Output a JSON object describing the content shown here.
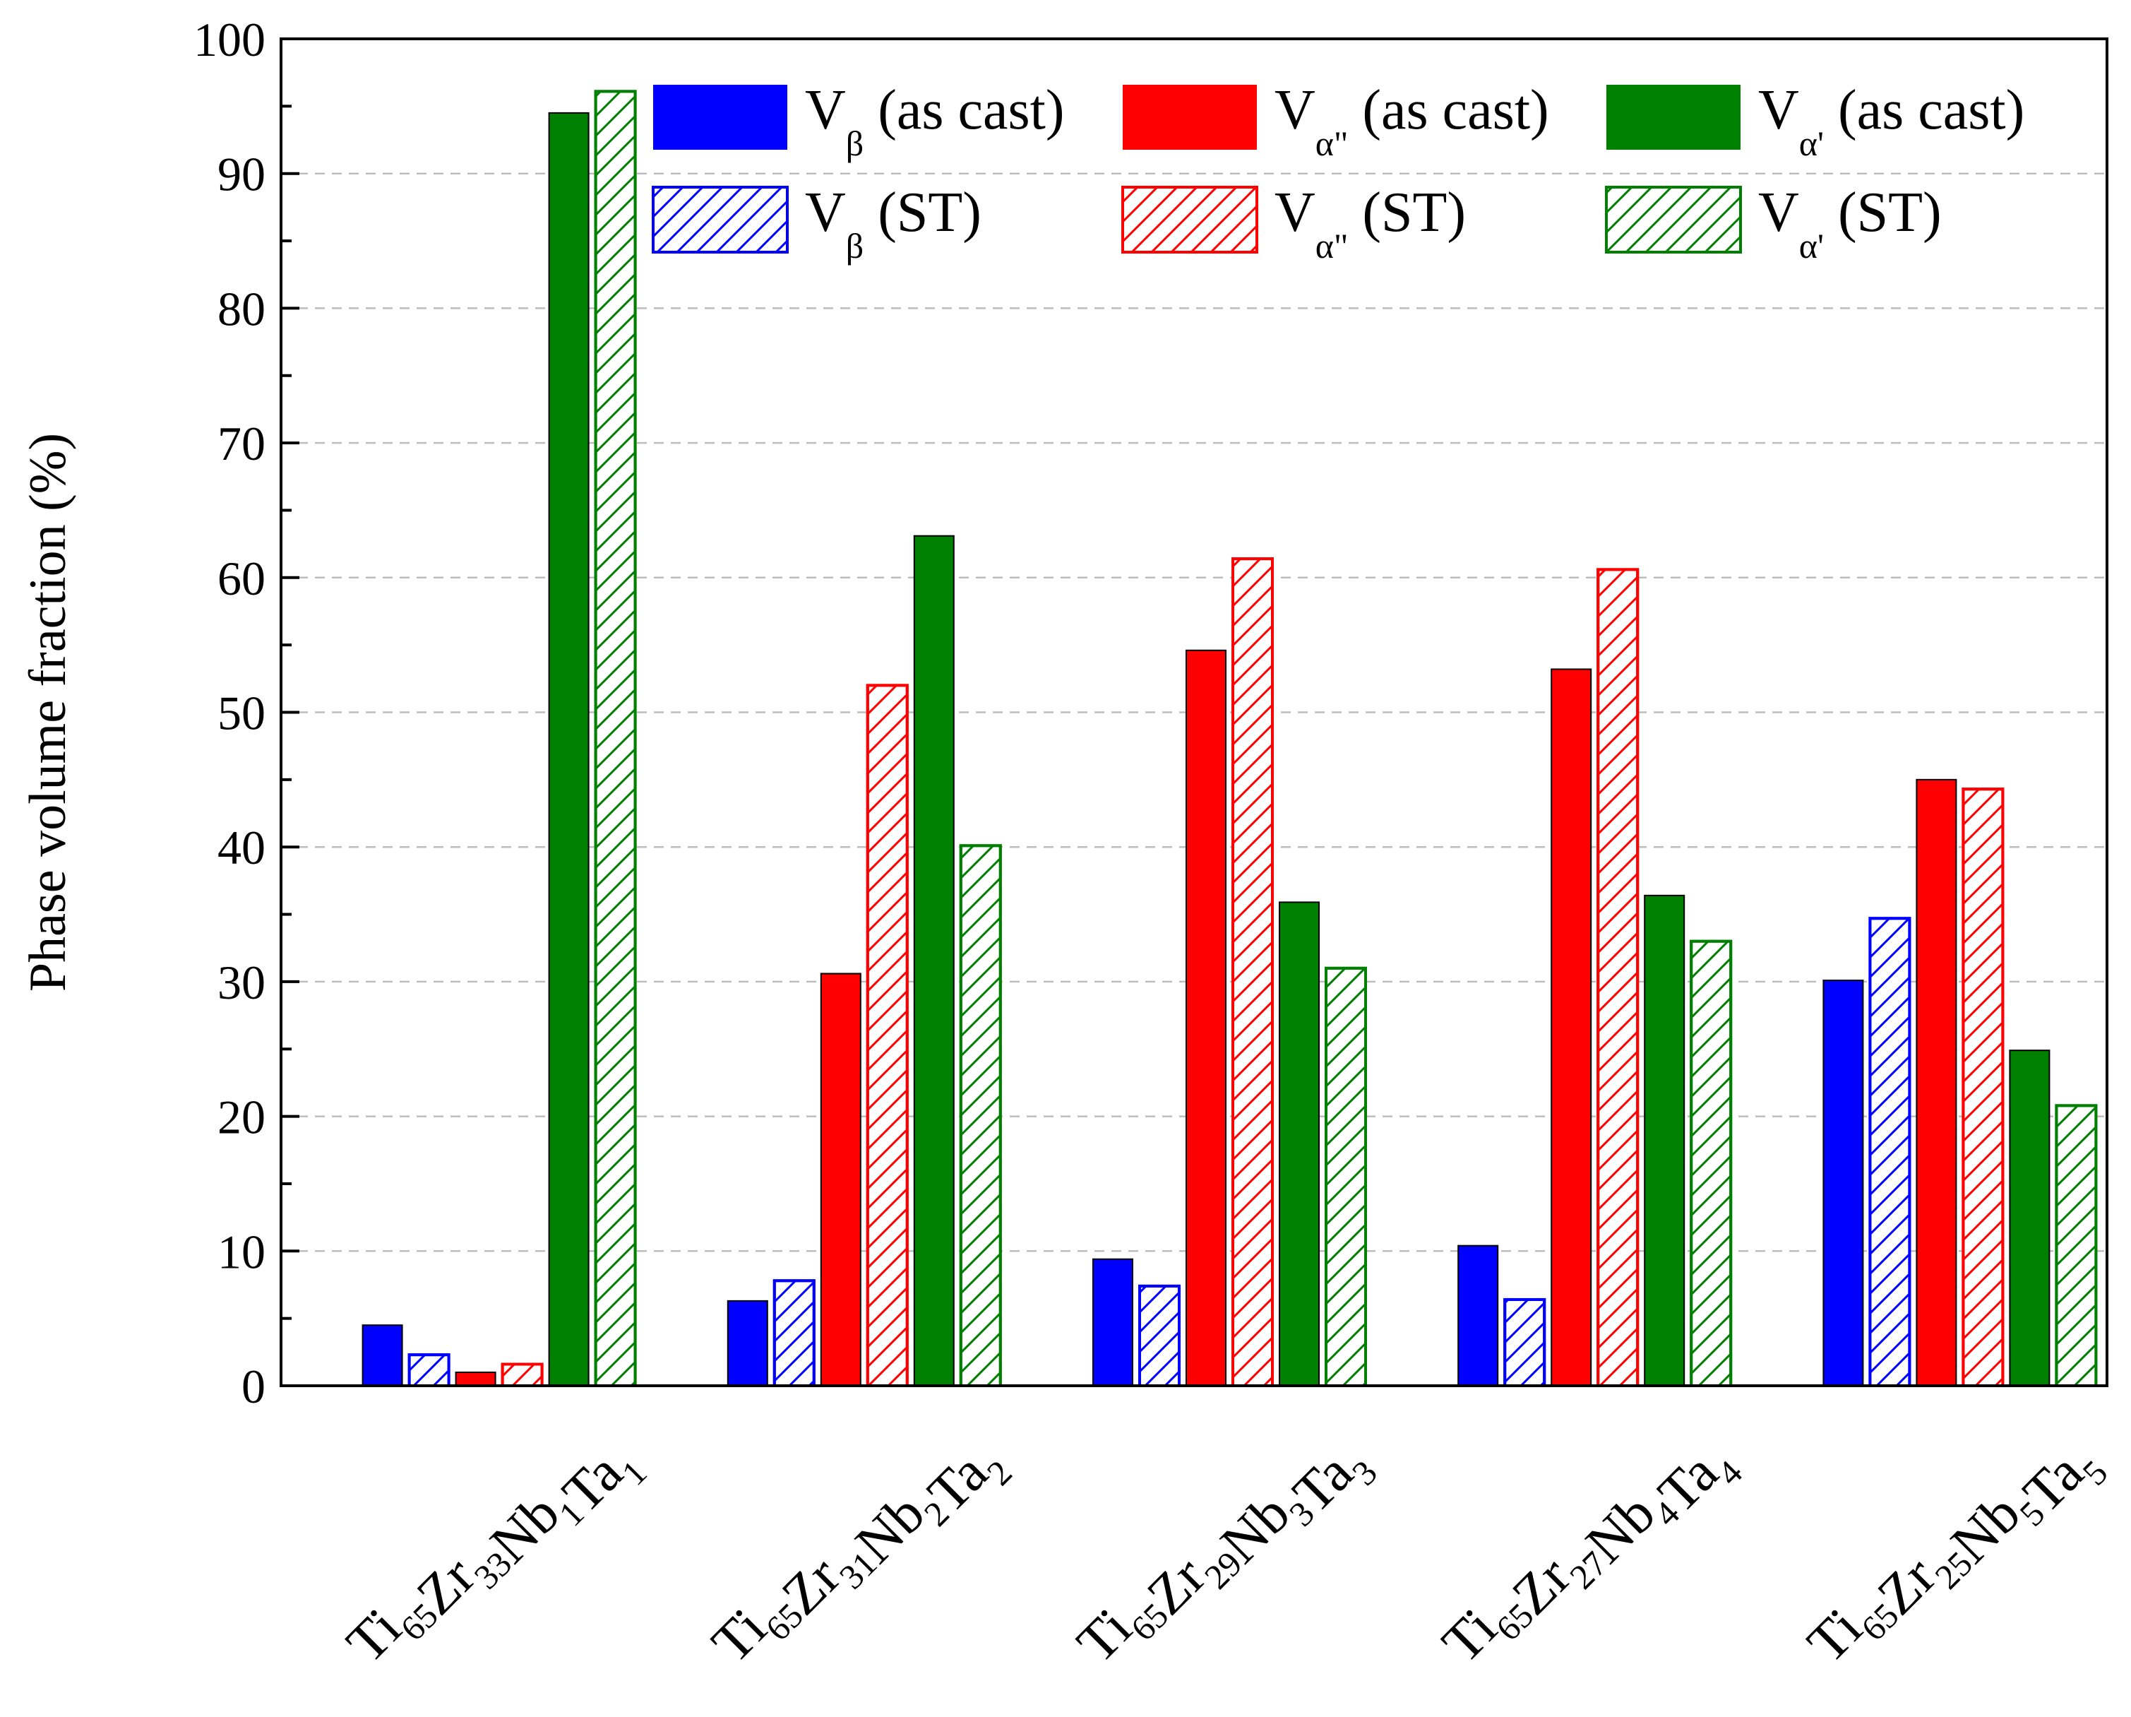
{
  "chart_data": {
    "type": "bar",
    "title": "",
    "xlabel": "",
    "ylabel": "Phase volume fraction (%)",
    "ylim": [
      0,
      100
    ],
    "yticks": [
      "0",
      "10",
      "20",
      "30",
      "40",
      "50",
      "60",
      "70",
      "80",
      "90",
      "100"
    ],
    "categories": [
      {
        "id": "c1",
        "parts": [
          [
            "Ti",
            "65"
          ],
          [
            "Zr",
            "33"
          ],
          [
            "Nb",
            "1"
          ],
          [
            "Ta",
            "1"
          ]
        ]
      },
      {
        "id": "c2",
        "parts": [
          [
            "Ti",
            "65"
          ],
          [
            "Zr",
            "31"
          ],
          [
            "Nb",
            "2"
          ],
          [
            "Ta",
            "2"
          ]
        ]
      },
      {
        "id": "c3",
        "parts": [
          [
            "Ti",
            "65"
          ],
          [
            "Zr",
            "29"
          ],
          [
            "Nb",
            "3"
          ],
          [
            "Ta",
            "3"
          ]
        ]
      },
      {
        "id": "c4",
        "parts": [
          [
            "Ti",
            "65"
          ],
          [
            "Zr",
            "27"
          ],
          [
            "Nb",
            "4"
          ],
          [
            "Ta",
            "4"
          ]
        ]
      },
      {
        "id": "c5",
        "parts": [
          [
            "Ti",
            "65"
          ],
          [
            "Zr",
            "25"
          ],
          [
            "Nb",
            "5"
          ],
          [
            "Ta",
            "5"
          ]
        ]
      }
    ],
    "series": [
      {
        "name": "V β (as cast)",
        "main": "V",
        "sub": "β",
        "suffix": " (as cast)",
        "color": "#0000ff",
        "hatched": false,
        "values": [
          4.5,
          6.3,
          9.4,
          10.4,
          30.1
        ]
      },
      {
        "name": "V β (ST)",
        "main": "V",
        "sub": "β",
        "suffix": " (ST)",
        "color": "#0000ff",
        "hatched": true,
        "values": [
          2.3,
          7.8,
          7.4,
          6.4,
          34.7
        ]
      },
      {
        "name": "V α\" (as cast)",
        "main": "V",
        "sub": "α\"",
        "suffix": " (as cast)",
        "color": "#ff0000",
        "hatched": false,
        "values": [
          1.0,
          30.6,
          54.6,
          53.2,
          45.0
        ]
      },
      {
        "name": "V α\" (ST)",
        "main": "V",
        "sub": "α\"",
        "suffix": " (ST)",
        "color": "#ff0000",
        "hatched": true,
        "values": [
          1.6,
          52.0,
          61.4,
          60.6,
          44.3
        ]
      },
      {
        "name": "V α' (as cast)",
        "main": "V",
        "sub": "α'",
        "suffix": " (as cast)",
        "color": "#008000",
        "hatched": false,
        "values": [
          94.5,
          63.1,
          35.9,
          36.4,
          24.9
        ]
      },
      {
        "name": "V α' (ST)",
        "main": "V",
        "sub": "α'",
        "suffix": " (ST)",
        "color": "#008000",
        "hatched": true,
        "values": [
          96.1,
          40.1,
          31.0,
          33.0,
          20.8
        ]
      }
    ],
    "grid": true,
    "legend_position": "top-right"
  }
}
